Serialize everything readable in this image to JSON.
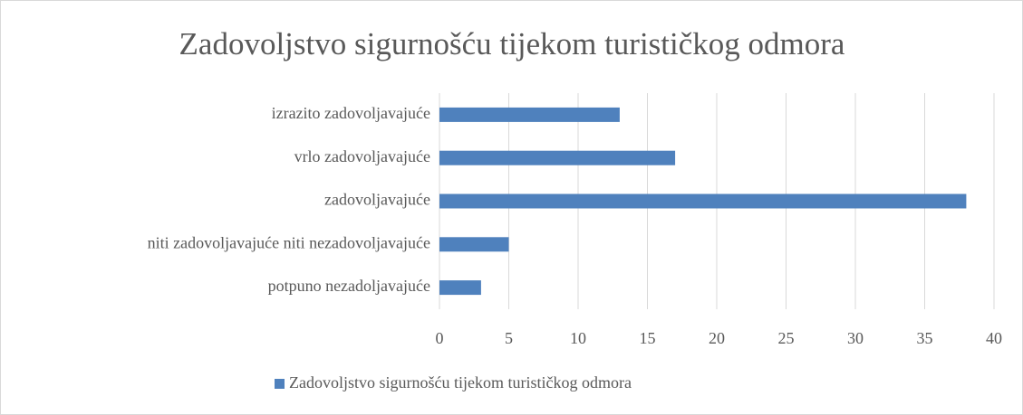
{
  "chart_data": {
    "type": "hbar",
    "title": "Zadovoljstvo sigurnošću tijekom turističkog odmora",
    "categories": [
      "izrazito zadovoljavajuće",
      "vrlo zadovoljavajuće",
      "zadovoljavajuće",
      "niti zadovoljavajuće niti nezadovoljavajuće",
      "potpuno nezadoljavajuće"
    ],
    "series": [
      {
        "name": "Zadovoljstvo sigurnošću tijekom turističkog odmora",
        "color": "#4f81bd",
        "values": [
          13,
          17,
          38,
          5,
          3
        ]
      }
    ],
    "xlim": [
      0,
      40
    ],
    "xticks": [
      0,
      5,
      10,
      15,
      20,
      25,
      30,
      35,
      40
    ],
    "grid": true,
    "legend": "bottom"
  }
}
